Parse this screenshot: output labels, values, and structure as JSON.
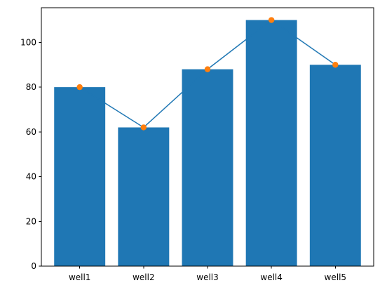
{
  "chart_data": {
    "type": "bar",
    "categories": [
      "well1",
      "well2",
      "well3",
      "well4",
      "well5"
    ],
    "values": [
      80,
      62,
      88,
      110,
      90
    ],
    "line_overlay": {
      "values": [
        80,
        62,
        88,
        110,
        90
      ],
      "marker": "circle"
    },
    "title": "",
    "xlabel": "",
    "ylabel": "",
    "ylim": [
      0,
      115.5
    ],
    "yticks": [
      0,
      20,
      40,
      60,
      80,
      100
    ],
    "grid": false,
    "colors": {
      "bar": "#1f77b4",
      "line": "#1f77b4",
      "marker": "#ff7f0e"
    }
  }
}
